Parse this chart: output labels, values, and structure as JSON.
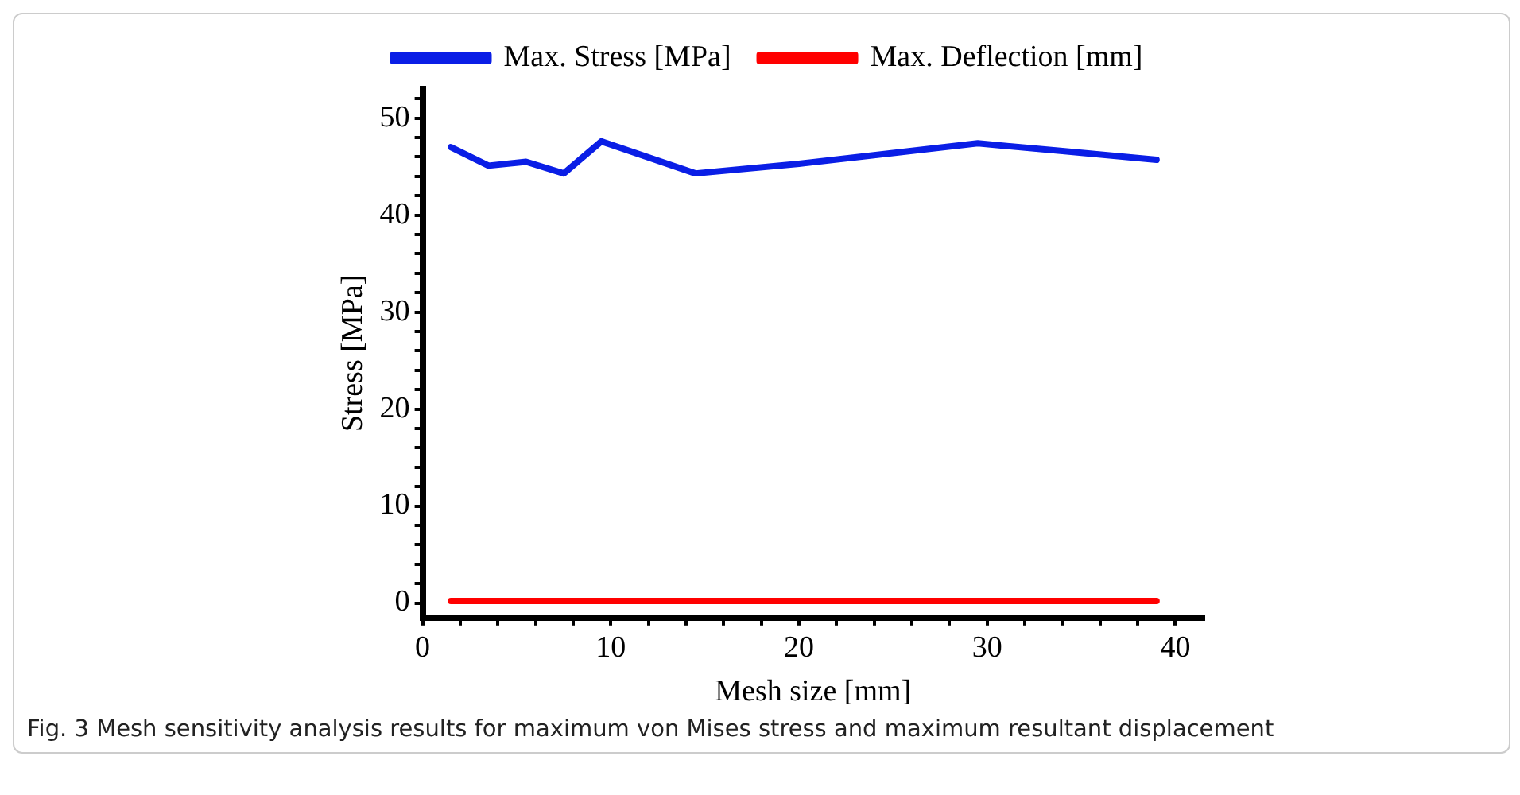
{
  "chart_data": {
    "type": "line",
    "xlabel": "Mesh size [mm]",
    "ylabel": "Stress [MPa]",
    "annotations": [
      "Fig. 3  Mesh sensitivity analysis results for maximum von Mises stress and maximum resultant displacement"
    ],
    "xlim": [
      0,
      41.5
    ],
    "ylim": [
      -1.5,
      53
    ],
    "xticks": [
      0,
      {
        "value": 2,
        "label": null
      },
      {
        "value": 4,
        "label": null
      },
      {
        "value": 6,
        "label": null
      },
      {
        "value": 8,
        "label": null
      },
      10,
      {
        "value": 12,
        "label": null
      },
      {
        "value": 14,
        "label": null
      },
      {
        "value": 16,
        "label": null
      },
      {
        "value": 18,
        "label": null
      },
      20,
      {
        "value": 22,
        "label": null
      },
      {
        "value": 24,
        "label": null
      },
      {
        "value": 26,
        "label": null
      },
      {
        "value": 28,
        "label": null
      },
      30,
      {
        "value": 32,
        "label": null
      },
      {
        "value": 34,
        "label": null
      },
      {
        "value": 36,
        "label": null
      },
      {
        "value": 38,
        "label": null
      },
      40
    ],
    "yticks": [
      0,
      {
        "value": 2,
        "label": null
      },
      {
        "value": 4,
        "label": null
      },
      {
        "value": 6,
        "label": null
      },
      {
        "value": 8,
        "label": null
      },
      10,
      {
        "value": 12,
        "label": null
      },
      {
        "value": 14,
        "label": null
      },
      {
        "value": 16,
        "label": null
      },
      {
        "value": 18,
        "label": null
      },
      20,
      {
        "value": 22,
        "label": null
      },
      {
        "value": 24,
        "label": null
      },
      {
        "value": 26,
        "label": null
      },
      {
        "value": 28,
        "label": null
      },
      30,
      {
        "value": 32,
        "label": null
      },
      {
        "value": 34,
        "label": null
      },
      {
        "value": 36,
        "label": null
      },
      {
        "value": 38,
        "label": null
      },
      40,
      {
        "value": 42,
        "label": null
      },
      {
        "value": 44,
        "label": null
      },
      {
        "value": 46,
        "label": null
      },
      {
        "value": 48,
        "label": null
      },
      50,
      {
        "value": 52,
        "label": null
      }
    ],
    "grid": false,
    "legend": "top",
    "marker": "none",
    "line_style": "solid",
    "series": [
      {
        "name": "Max. Stress [MPa]",
        "color": "#0a1ee6",
        "x": [
          1.5,
          3.5,
          5.5,
          7.5,
          9.5,
          14.5,
          20,
          25,
          29.5,
          34,
          39
        ],
        "values": [
          47,
          45.1,
          45.5,
          44.3,
          47.6,
          44.3,
          45.3,
          46.4,
          47.4,
          46.6,
          45.7
        ]
      },
      {
        "name": "Max. Deflection [mm]",
        "color": "#ff0000",
        "x": [
          1.5,
          39
        ],
        "values": [
          0.2,
          0.2
        ]
      }
    ]
  }
}
